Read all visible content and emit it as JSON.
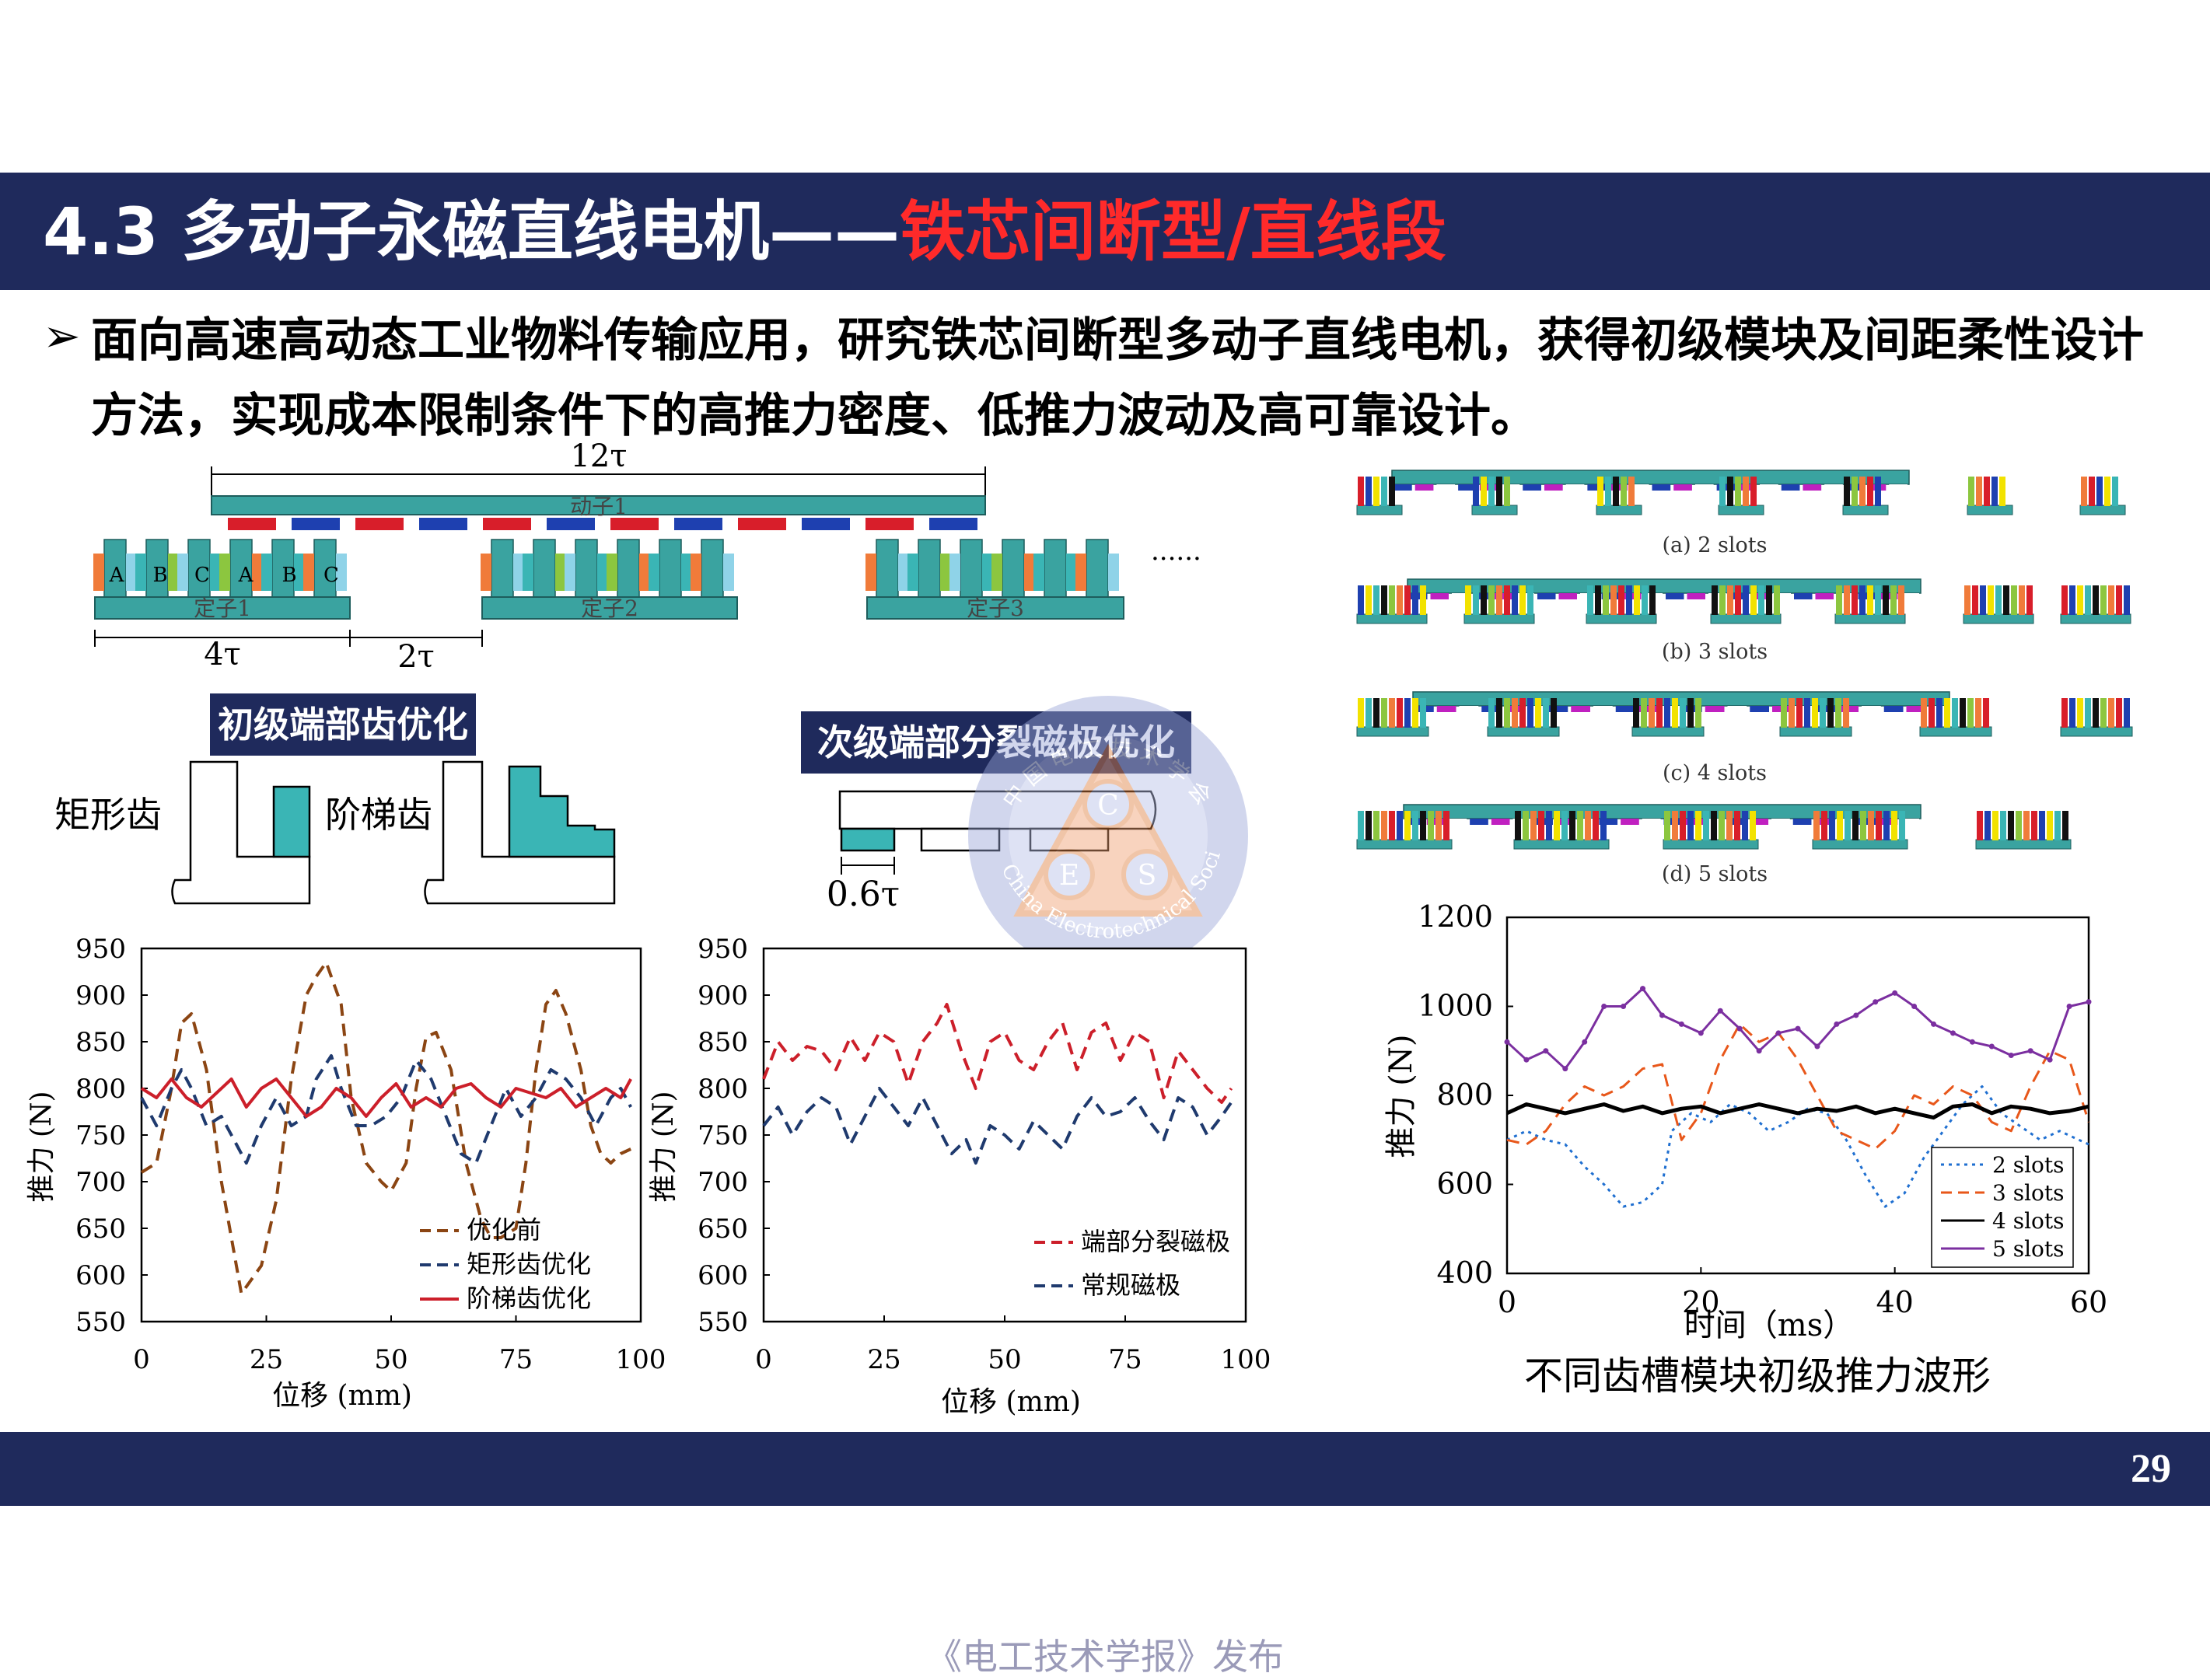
{
  "slide": {
    "title_prefix": "4.3 多动子永磁直线电机——",
    "title_highlight": "铁芯间断型/直线段",
    "bullet_text": "面向高速高动态工业物料传输应用，研究铁芯间断型多动子直线电机，获得初级模块及间距柔性设计方法，实现成本限制条件下的高推力密度、低推力波动及高可靠设计。",
    "page_number": "29",
    "publisher": "《电工技术学报》发布",
    "colors": {
      "navy": "#1f2a5c",
      "title_highlight": "#ff2a2a",
      "teal": "#3ab5b5"
    }
  },
  "structure_diagram": {
    "mover_span": "12τ",
    "mover_label": "动子1",
    "phase_labels": [
      "A",
      "B",
      "C",
      "A",
      "B",
      "C"
    ],
    "stator_labels": [
      "定子1",
      "定子2",
      "定子3"
    ],
    "dim_stator": "4τ",
    "dim_gap": "2τ",
    "ellipsis": "......"
  },
  "primary_opt": {
    "box_label": "初级端部齿优化",
    "rect_label": "矩形齿",
    "step_label": "阶梯齿"
  },
  "secondary_opt": {
    "box_label": "次级端部分裂磁极优化",
    "dim_label": "0.6τ"
  },
  "slots_panels": {
    "captions": [
      "(a) 2 slots",
      "(b) 3 slots",
      "(c) 4 slots",
      "(d) 5 slots"
    ]
  },
  "watermark": {
    "letters": [
      "C",
      "E",
      "S"
    ],
    "arc_text": "China Electrotechnical Society",
    "top_text": "中 国 电 工 技 术 学 会"
  },
  "chart_data": [
    {
      "type": "line",
      "xlabel": "位移 (mm)",
      "ylabel": "推力 (N)",
      "xlim": [
        0,
        100
      ],
      "ylim": [
        550,
        950
      ],
      "xticks": [
        "0",
        "25",
        "50",
        "75",
        "100"
      ],
      "yticks": [
        "950",
        "900",
        "850",
        "800",
        "750",
        "700",
        "650",
        "600",
        "550"
      ],
      "legend": "bottom-right",
      "series": [
        {
          "name": "优化前",
          "color": "#8b4513",
          "dash": "dashed",
          "x": [
            0,
            3,
            6,
            8,
            10,
            13,
            16,
            20,
            24,
            27,
            30,
            33,
            35,
            37,
            40,
            42,
            45,
            48,
            50,
            53,
            55,
            57,
            59,
            62,
            65,
            68,
            70,
            72,
            75,
            77,
            79,
            81,
            83,
            85,
            88,
            90,
            92,
            94,
            96,
            98
          ],
          "values": [
            710,
            720,
            800,
            870,
            880,
            820,
            700,
            580,
            610,
            680,
            810,
            900,
            920,
            935,
            890,
            790,
            720,
            700,
            690,
            720,
            800,
            855,
            860,
            820,
            720,
            660,
            640,
            640,
            650,
            720,
            820,
            890,
            905,
            880,
            820,
            760,
            730,
            720,
            730,
            735
          ]
        },
        {
          "name": "矩形齿优化",
          "color": "#1f3a6e",
          "dash": "dashed",
          "x": [
            0,
            3,
            6,
            8,
            10,
            13,
            16,
            19,
            21,
            24,
            27,
            30,
            33,
            35,
            38,
            40,
            43,
            46,
            49,
            52,
            55,
            58,
            61,
            64,
            67,
            70,
            73,
            76,
            79,
            82,
            85,
            88,
            91,
            94,
            96,
            98
          ],
          "values": [
            790,
            760,
            800,
            820,
            800,
            760,
            770,
            740,
            720,
            760,
            790,
            760,
            770,
            810,
            835,
            800,
            760,
            760,
            770,
            790,
            830,
            810,
            770,
            730,
            720,
            760,
            800,
            770,
            790,
            820,
            810,
            790,
            760,
            790,
            800,
            780
          ]
        },
        {
          "name": "阶梯齿优化",
          "color": "#cc1f2a",
          "dash": "solid",
          "x": [
            0,
            3,
            6,
            9,
            12,
            15,
            18,
            21,
            24,
            27,
            30,
            33,
            36,
            39,
            42,
            45,
            48,
            51,
            54,
            57,
            60,
            63,
            66,
            69,
            72,
            75,
            78,
            81,
            84,
            87,
            90,
            93,
            96,
            98
          ],
          "values": [
            800,
            790,
            810,
            790,
            780,
            795,
            810,
            780,
            800,
            810,
            790,
            770,
            780,
            800,
            790,
            770,
            790,
            805,
            780,
            790,
            780,
            800,
            805,
            790,
            780,
            800,
            795,
            790,
            800,
            780,
            790,
            800,
            790,
            810
          ]
        }
      ]
    },
    {
      "type": "line",
      "xlabel": "位移 (mm)",
      "ylabel": "推力 (N)",
      "xlim": [
        0,
        100
      ],
      "ylim": [
        550,
        950
      ],
      "xticks": [
        "0",
        "25",
        "50",
        "75",
        "100"
      ],
      "yticks": [
        "950",
        "900",
        "850",
        "800",
        "750",
        "700",
        "650",
        "600",
        "550"
      ],
      "legend": "bottom-right",
      "series": [
        {
          "name": "端部分裂磁极",
          "color": "#cc1f2a",
          "dash": "dashed",
          "x": [
            0,
            3,
            6,
            9,
            12,
            15,
            18,
            21,
            24,
            27,
            30,
            33,
            36,
            38,
            41,
            44,
            47,
            50,
            53,
            56,
            59,
            62,
            65,
            68,
            71,
            74,
            77,
            80,
            83,
            86,
            89,
            92,
            95,
            97
          ],
          "values": [
            810,
            850,
            830,
            845,
            840,
            820,
            855,
            830,
            860,
            850,
            805,
            850,
            870,
            890,
            840,
            800,
            850,
            860,
            830,
            820,
            850,
            870,
            820,
            860,
            870,
            830,
            860,
            850,
            790,
            840,
            820,
            800,
            785,
            800
          ]
        },
        {
          "name": "常规磁极",
          "color": "#1f3a6e",
          "dash": "dashed",
          "x": [
            0,
            3,
            6,
            9,
            12,
            15,
            18,
            21,
            24,
            27,
            30,
            33,
            36,
            39,
            42,
            44,
            47,
            50,
            53,
            56,
            59,
            62,
            65,
            68,
            71,
            74,
            77,
            80,
            83,
            86,
            89,
            92,
            95,
            97
          ],
          "values": [
            760,
            780,
            750,
            775,
            790,
            780,
            740,
            770,
            800,
            780,
            760,
            790,
            760,
            730,
            745,
            720,
            760,
            750,
            735,
            765,
            750,
            735,
            770,
            790,
            770,
            775,
            790,
            765,
            745,
            790,
            780,
            750,
            770,
            785
          ]
        }
      ]
    },
    {
      "type": "line",
      "xlabel": "时间（ms）",
      "ylabel": "推力 (N)",
      "xlim": [
        0,
        60
      ],
      "ylim": [
        400,
        1200
      ],
      "xticks": [
        "0",
        "20",
        "40",
        "60"
      ],
      "yticks": [
        "1200",
        "1000",
        "800",
        "600",
        "400"
      ],
      "legend": "bottom-right",
      "series": [
        {
          "name": "2 slots",
          "color": "#1f6fd0",
          "dash": "dotted",
          "x": [
            0,
            2,
            4,
            6,
            8,
            10,
            12,
            14,
            16,
            17,
            19,
            21,
            23,
            25,
            27,
            29,
            31,
            33,
            35,
            37,
            39,
            41,
            43,
            45,
            47,
            49,
            51,
            53,
            55,
            57,
            59,
            60
          ],
          "values": [
            700,
            720,
            700,
            690,
            640,
            600,
            550,
            560,
            600,
            720,
            760,
            740,
            780,
            760,
            720,
            740,
            770,
            760,
            700,
            620,
            550,
            580,
            660,
            720,
            780,
            820,
            760,
            730,
            700,
            720,
            700,
            690
          ]
        },
        {
          "name": "3 slots",
          "color": "#e8571a",
          "dash": "dashed",
          "x": [
            0,
            2,
            4,
            6,
            8,
            10,
            12,
            14,
            16,
            18,
            20,
            22,
            24,
            26,
            28,
            30,
            32,
            34,
            36,
            38,
            40,
            42,
            44,
            46,
            48,
            50,
            52,
            54,
            56,
            58,
            60
          ],
          "values": [
            700,
            690,
            720,
            780,
            820,
            800,
            820,
            860,
            870,
            700,
            760,
            880,
            960,
            920,
            940,
            880,
            800,
            720,
            700,
            680,
            720,
            800,
            780,
            820,
            800,
            740,
            720,
            820,
            900,
            880,
            740
          ]
        },
        {
          "name": "4 slots",
          "color": "#000000",
          "dash": "solid",
          "x": [
            0,
            2,
            4,
            6,
            8,
            10,
            12,
            14,
            16,
            18,
            20,
            22,
            24,
            26,
            28,
            30,
            32,
            34,
            36,
            38,
            40,
            42,
            44,
            46,
            48,
            50,
            52,
            54,
            56,
            58,
            60
          ],
          "values": [
            760,
            780,
            770,
            760,
            770,
            780,
            765,
            775,
            760,
            770,
            775,
            760,
            770,
            780,
            770,
            760,
            770,
            765,
            775,
            760,
            770,
            760,
            750,
            775,
            780,
            760,
            775,
            770,
            760,
            765,
            775
          ]
        },
        {
          "name": "5 slots",
          "color": "#7b2fa0",
          "dash": "solid-markers",
          "x": [
            0,
            2,
            4,
            6,
            8,
            10,
            12,
            14,
            16,
            18,
            20,
            22,
            24,
            26,
            28,
            30,
            32,
            34,
            36,
            38,
            40,
            42,
            44,
            46,
            48,
            50,
            52,
            54,
            56,
            58,
            60
          ],
          "values": [
            920,
            880,
            900,
            860,
            920,
            1000,
            1000,
            1040,
            980,
            960,
            940,
            990,
            950,
            900,
            940,
            950,
            910,
            960,
            980,
            1010,
            1030,
            1000,
            960,
            940,
            920,
            910,
            890,
            900,
            880,
            1000,
            1010
          ]
        }
      ]
    }
  ],
  "chart3_caption": "不同齿槽模块初级推力波形"
}
